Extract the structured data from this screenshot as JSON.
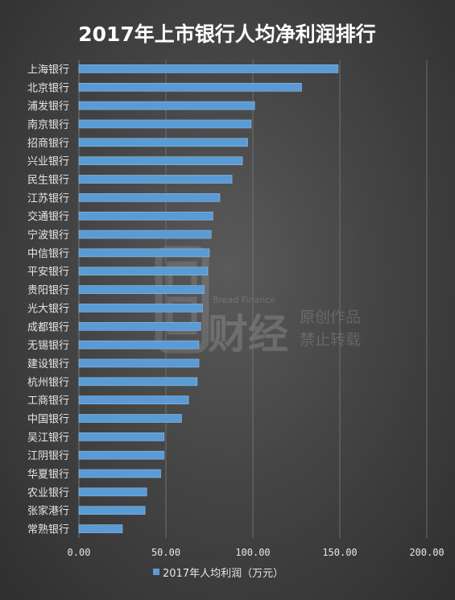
{
  "colors": {
    "bar": "#5b9bd5",
    "bar_edge": "#8fc0ec",
    "grid": "#7a7a7a",
    "text": "#e6e6e6"
  },
  "watermark": {
    "logo_text": "财经",
    "small_text": "Bread Finance",
    "line1": "原创作品",
    "line2": "禁止转载"
  },
  "chart_data": {
    "type": "bar",
    "orientation": "horizontal",
    "title": "2017年上市银行人均净利润排行",
    "xlabel": "",
    "ylabel": "",
    "xlim": [
      0,
      200
    ],
    "x_ticks": [
      "0.00",
      "50.00",
      "100.00",
      "150.00",
      "200.00"
    ],
    "grid": "vertical",
    "legend_position": "bottom",
    "categories": [
      "上海银行",
      "北京银行",
      "浦发银行",
      "南京银行",
      "招商银行",
      "兴业银行",
      "民生银行",
      "江苏银行",
      "交通银行",
      "宁波银行",
      "中信银行",
      "平安银行",
      "贵阳银行",
      "光大银行",
      "成都银行",
      "无锡银行",
      "建设银行",
      "杭州银行",
      "工商银行",
      "中国银行",
      "吴江银行",
      "江阴银行",
      "华夏银行",
      "农业银行",
      "张家港行",
      "常熟银行"
    ],
    "series": [
      {
        "name": "2017年人均利润（万元）",
        "values": [
          149,
          128,
          101,
          99,
          97,
          94,
          88,
          81,
          77,
          76,
          75,
          74,
          72,
          71,
          70,
          69,
          69,
          68,
          63,
          59,
          49,
          49,
          47,
          39,
          38,
          25
        ]
      }
    ]
  }
}
